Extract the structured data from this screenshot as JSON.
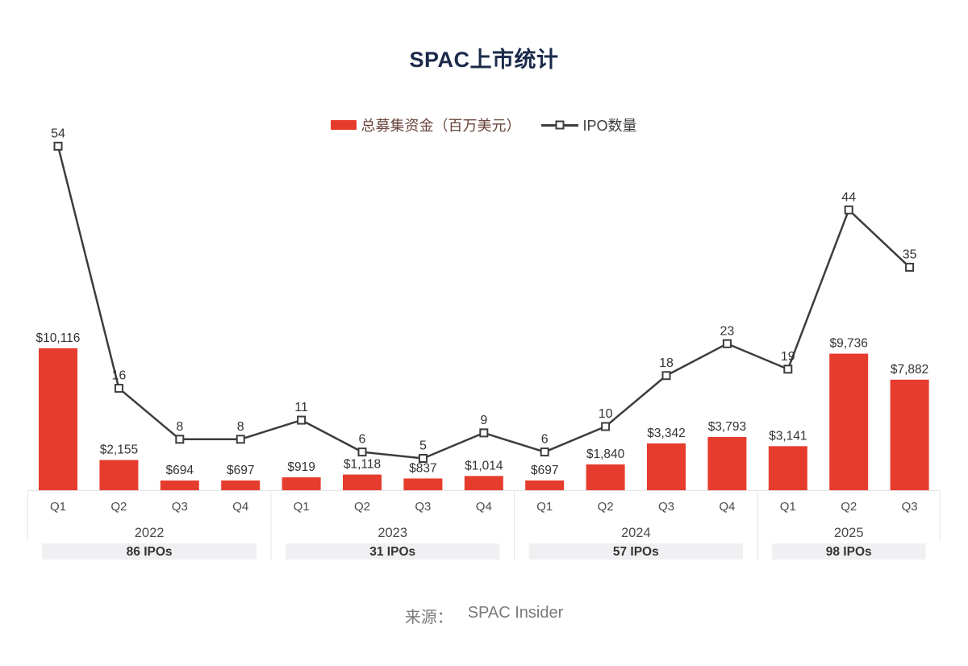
{
  "title": "SPAC上市统计",
  "legend": {
    "bar_label": "总募集资金（百万美元）",
    "line_label": "IPO数量"
  },
  "source": {
    "label": "来源：",
    "value": "SPAC Insider"
  },
  "colors": {
    "bar": "#e63c2d",
    "line": "#3d3d3d",
    "title": "#1b2a4a",
    "axis": "#e2e2e6",
    "badge_bg": "#f0f0f3",
    "value_label": "#333333",
    "axis_text": "#4a4a4a",
    "badge_text": "#333333",
    "source_text": "#7a7a7a"
  },
  "chart_data": {
    "type": "bar+line combo",
    "title": "SPAC上市统计",
    "categories": [
      "Q1",
      "Q2",
      "Q3",
      "Q4",
      "Q1",
      "Q2",
      "Q3",
      "Q4",
      "Q1",
      "Q2",
      "Q3",
      "Q4",
      "Q1",
      "Q2",
      "Q3"
    ],
    "groups": [
      {
        "year": "2022",
        "quarters": 4,
        "badge": "86 IPOs"
      },
      {
        "year": "2023",
        "quarters": 4,
        "badge": "31 IPOs"
      },
      {
        "year": "2024",
        "quarters": 4,
        "badge": "57 IPOs"
      },
      {
        "year": "2025",
        "quarters": 3,
        "badge": "98 IPOs"
      }
    ],
    "series": [
      {
        "name": "总募集资金（百万美元）",
        "type": "bar",
        "color": "#e63c2d",
        "values": [
          10116,
          2155,
          694,
          697,
          919,
          1118,
          837,
          1014,
          697,
          1840,
          3342,
          3793,
          3141,
          9736,
          7882
        ],
        "labels": [
          "$10,116",
          "$2,155",
          "$694",
          "$697",
          "$919",
          "$1,118",
          "$837",
          "$1,014",
          "$697",
          "$1,840",
          "$3,342",
          "$3,793",
          "$3,141",
          "$9,736",
          "$7,882"
        ]
      },
      {
        "name": "IPO数量",
        "type": "line",
        "color": "#3d3d3d",
        "marker": "hollow-square",
        "values": [
          54,
          16,
          8,
          8,
          11,
          6,
          5,
          9,
          6,
          10,
          18,
          23,
          19,
          44,
          35
        ]
      }
    ],
    "ylim_bar": [
      0,
      10116
    ],
    "ylim_line": [
      0,
      55
    ],
    "legend_position": "top",
    "grid": false
  }
}
